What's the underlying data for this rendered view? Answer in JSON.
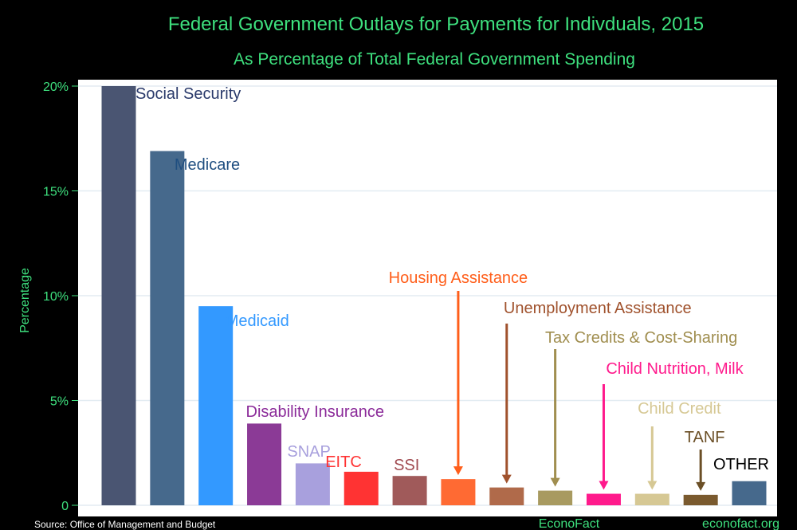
{
  "chart_data": {
    "type": "bar",
    "title": "Federal Government Outlays for Payments for Indivduals, 2015",
    "subtitle": "As Percentage of Total Federal Government Spending",
    "ylabel": "Percentage",
    "ylim": [
      0,
      20
    ],
    "yticks": [
      {
        "value": 0,
        "label": "0"
      },
      {
        "value": 5,
        "label": "5%"
      },
      {
        "value": 10,
        "label": "10%"
      },
      {
        "value": 15,
        "label": "15%"
      },
      {
        "value": 20,
        "label": "20%"
      }
    ],
    "grid": true,
    "categories": [
      {
        "label": "Social Security",
        "value": 20.0,
        "color": "#4a5572",
        "text_color": "#2a3a6b",
        "arrow": false
      },
      {
        "label": "Medicare",
        "value": 16.9,
        "color": "#46698c",
        "text_color": "#1f4e80",
        "arrow": false
      },
      {
        "label": "Medicaid",
        "value": 9.5,
        "color": "#3399ff",
        "text_color": "#3399ff",
        "arrow": false
      },
      {
        "label": "Disability Insurance",
        "value": 3.9,
        "color": "#8b3a96",
        "text_color": "#8b2a99",
        "arrow": false
      },
      {
        "label": "SNAP",
        "value": 2.0,
        "color": "#a8a0dd",
        "text_color": "#a8a0dd",
        "arrow": false
      },
      {
        "label": "EITC",
        "value": 1.6,
        "color": "#ff3333",
        "text_color": "#ff3333",
        "arrow": false
      },
      {
        "label": "SSI",
        "value": 1.4,
        "color": "#a05a5a",
        "text_color": "#a04a50",
        "arrow": false
      },
      {
        "label": "Housing Assistance",
        "value": 1.25,
        "color": "#ff6a33",
        "text_color": "#ff5e1a",
        "arrow": true
      },
      {
        "label": "Unemployment Assistance",
        "value": 0.85,
        "color": "#b06a4a",
        "text_color": "#a0522d",
        "arrow": true
      },
      {
        "label": "Tax Credits & Cost-Sharing",
        "value": 0.7,
        "color": "#a89a60",
        "text_color": "#a08e4f",
        "arrow": true
      },
      {
        "label": "Child Nutrition, Milk",
        "value": 0.55,
        "color": "#ff1a8c",
        "text_color": "#ff1a8c",
        "arrow": true
      },
      {
        "label": "Child Credit",
        "value": 0.55,
        "color": "#d6c894",
        "text_color": "#d6c894",
        "arrow": true
      },
      {
        "label": "TANF",
        "value": 0.5,
        "color": "#7a5a2e",
        "text_color": "#6b4f26",
        "arrow": true
      },
      {
        "label": "OTHER",
        "value": 1.15,
        "color": "#46698c",
        "text_color": "#000000",
        "arrow": false
      }
    ],
    "source": "Source: Office of Management and Budget",
    "brand_center": "EconoFact",
    "brand_right": "econofact.org"
  }
}
